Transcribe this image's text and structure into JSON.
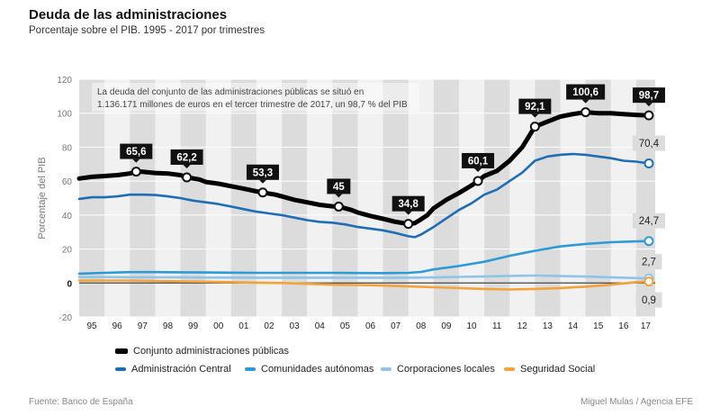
{
  "title": "Deuda de las administraciones",
  "subtitle": "Porcentaje sobre el PIB. 1995 - 2017 por trimestres",
  "source": "Fuente: Banco de España",
  "credit": "Miguel Mulas / Agencia EFE",
  "chart_data": {
    "type": "line",
    "ylabel": "Porcentaje del PIB",
    "ylim": [
      -20,
      120
    ],
    "yticks": [
      "120",
      "100",
      "80",
      "60",
      "40",
      "20",
      "0",
      "-20"
    ],
    "ytick_values": [
      120,
      100,
      80,
      60,
      40,
      20,
      0,
      -20
    ],
    "xticks": [
      "95",
      "96",
      "97",
      "98",
      "99",
      "00",
      "01",
      "02",
      "03",
      "04",
      "05",
      "06",
      "07",
      "08",
      "09",
      "10",
      "11",
      "12",
      "13",
      "14",
      "15",
      "16",
      "17"
    ],
    "x_start": 1995.0,
    "x_end": 2017.75,
    "annotation": "La deuda del conjunto de las administraciones públicas se situó en 1.136.171 millones de euros en el tercer trimestre de 2017, un 98,7 % del PIB",
    "series": [
      {
        "name": "Conjunto administraciones públicas",
        "color": "#000000",
        "points": [
          [
            1995.0,
            61.5
          ],
          [
            1995.5,
            62.5
          ],
          [
            1996.0,
            63.0
          ],
          [
            1996.5,
            63.5
          ],
          [
            1997.0,
            64.5
          ],
          [
            1997.25,
            65.6
          ],
          [
            1997.5,
            65.5
          ],
          [
            1998.0,
            64.8
          ],
          [
            1998.5,
            64.5
          ],
          [
            1999.0,
            63.5
          ],
          [
            1999.25,
            62.2
          ],
          [
            1999.75,
            61.0
          ],
          [
            2000.0,
            59.5
          ],
          [
            2000.5,
            58.5
          ],
          [
            2001.0,
            57.0
          ],
          [
            2001.5,
            55.5
          ],
          [
            2002.0,
            54.0
          ],
          [
            2002.25,
            53.3
          ],
          [
            2002.75,
            52.0
          ],
          [
            2003.0,
            51.0
          ],
          [
            2003.5,
            49.0
          ],
          [
            2004.0,
            47.5
          ],
          [
            2004.5,
            46.0
          ],
          [
            2005.0,
            45.2
          ],
          [
            2005.25,
            45.0
          ],
          [
            2005.75,
            43.0
          ],
          [
            2006.0,
            41.5
          ],
          [
            2006.5,
            39.5
          ],
          [
            2007.0,
            37.8
          ],
          [
            2007.5,
            36.0
          ],
          [
            2008.0,
            34.8
          ],
          [
            2008.25,
            35.2
          ],
          [
            2008.5,
            37.5
          ],
          [
            2008.75,
            40.0
          ],
          [
            2009.0,
            44.0
          ],
          [
            2009.5,
            49.0
          ],
          [
            2010.0,
            53.0
          ],
          [
            2010.5,
            57.5
          ],
          [
            2010.75,
            60.1
          ],
          [
            2011.0,
            63.0
          ],
          [
            2011.5,
            66.0
          ],
          [
            2012.0,
            72.0
          ],
          [
            2012.5,
            80.0
          ],
          [
            2012.75,
            86.0
          ],
          [
            2013.0,
            92.1
          ],
          [
            2013.5,
            95.0
          ],
          [
            2014.0,
            98.0
          ],
          [
            2014.5,
            99.5
          ],
          [
            2015.0,
            100.6
          ],
          [
            2015.5,
            100.0
          ],
          [
            2016.0,
            100.0
          ],
          [
            2016.5,
            99.5
          ],
          [
            2017.0,
            99.0
          ],
          [
            2017.5,
            98.7
          ]
        ]
      },
      {
        "name": "Administración Central",
        "color": "#1f6db5",
        "points": [
          [
            1995.0,
            49.5
          ],
          [
            1995.5,
            50.5
          ],
          [
            1996.0,
            50.5
          ],
          [
            1996.5,
            51.0
          ],
          [
            1997.0,
            52.0
          ],
          [
            1997.5,
            52.0
          ],
          [
            1998.0,
            51.8
          ],
          [
            1998.5,
            51.0
          ],
          [
            1999.0,
            50.0
          ],
          [
            1999.5,
            48.5
          ],
          [
            2000.0,
            47.5
          ],
          [
            2000.5,
            46.5
          ],
          [
            2001.0,
            45.0
          ],
          [
            2001.5,
            43.5
          ],
          [
            2002.0,
            42.0
          ],
          [
            2002.5,
            41.0
          ],
          [
            2003.0,
            40.0
          ],
          [
            2003.5,
            38.5
          ],
          [
            2004.0,
            37.0
          ],
          [
            2004.5,
            36.0
          ],
          [
            2005.0,
            35.5
          ],
          [
            2005.5,
            34.5
          ],
          [
            2006.0,
            33.0
          ],
          [
            2006.5,
            32.0
          ],
          [
            2007.0,
            31.0
          ],
          [
            2007.5,
            29.5
          ],
          [
            2008.0,
            27.5
          ],
          [
            2008.25,
            27.0
          ],
          [
            2008.5,
            28.5
          ],
          [
            2009.0,
            33.0
          ],
          [
            2009.5,
            38.0
          ],
          [
            2010.0,
            43.0
          ],
          [
            2010.5,
            47.0
          ],
          [
            2011.0,
            52.0
          ],
          [
            2011.5,
            55.0
          ],
          [
            2012.0,
            60.0
          ],
          [
            2012.5,
            65.0
          ],
          [
            2013.0,
            72.0
          ],
          [
            2013.5,
            74.5
          ],
          [
            2014.0,
            75.5
          ],
          [
            2014.5,
            76.0
          ],
          [
            2015.0,
            75.5
          ],
          [
            2015.5,
            74.5
          ],
          [
            2016.0,
            73.5
          ],
          [
            2016.5,
            72.0
          ],
          [
            2017.0,
            71.5
          ],
          [
            2017.5,
            70.4
          ]
        ]
      },
      {
        "name": "Comunidades autónomas",
        "color": "#2e9ad6",
        "points": [
          [
            1995.0,
            5.5
          ],
          [
            1996.0,
            6.0
          ],
          [
            1997.0,
            6.4
          ],
          [
            1998.0,
            6.4
          ],
          [
            1999.0,
            6.3
          ],
          [
            2000.0,
            6.2
          ],
          [
            2001.0,
            6.1
          ],
          [
            2002.0,
            6.0
          ],
          [
            2003.0,
            6.0
          ],
          [
            2004.0,
            6.0
          ],
          [
            2005.0,
            6.0
          ],
          [
            2006.0,
            5.9
          ],
          [
            2007.0,
            5.8
          ],
          [
            2008.0,
            6.0
          ],
          [
            2008.5,
            6.5
          ],
          [
            2009.0,
            8.0
          ],
          [
            2010.0,
            10.0
          ],
          [
            2011.0,
            12.5
          ],
          [
            2012.0,
            16.0
          ],
          [
            2012.5,
            17.5
          ],
          [
            2013.0,
            19.0
          ],
          [
            2014.0,
            21.5
          ],
          [
            2015.0,
            23.0
          ],
          [
            2016.0,
            24.0
          ],
          [
            2017.0,
            24.5
          ],
          [
            2017.5,
            24.7
          ]
        ]
      },
      {
        "name": "Corporaciones locales",
        "color": "#8fc4e8",
        "points": [
          [
            1995.0,
            3.5
          ],
          [
            1996.0,
            3.5
          ],
          [
            1997.0,
            3.4
          ],
          [
            1998.0,
            3.4
          ],
          [
            1999.0,
            3.3
          ],
          [
            2000.0,
            3.2
          ],
          [
            2001.0,
            3.2
          ],
          [
            2002.0,
            3.1
          ],
          [
            2003.0,
            3.1
          ],
          [
            2004.0,
            3.1
          ],
          [
            2005.0,
            3.1
          ],
          [
            2006.0,
            3.1
          ],
          [
            2007.0,
            3.1
          ],
          [
            2008.0,
            3.1
          ],
          [
            2009.0,
            3.3
          ],
          [
            2010.0,
            3.6
          ],
          [
            2011.0,
            3.8
          ],
          [
            2012.0,
            4.2
          ],
          [
            2013.0,
            4.4
          ],
          [
            2014.0,
            4.1
          ],
          [
            2015.0,
            3.8
          ],
          [
            2016.0,
            3.3
          ],
          [
            2017.0,
            2.9
          ],
          [
            2017.5,
            2.7
          ]
        ]
      },
      {
        "name": "Seguridad Social",
        "color": "#f2a43a",
        "points": [
          [
            1995.0,
            1.5
          ],
          [
            1996.0,
            1.5
          ],
          [
            1997.0,
            1.5
          ],
          [
            1998.0,
            1.2
          ],
          [
            1999.0,
            1.0
          ],
          [
            2000.0,
            0.8
          ],
          [
            2001.0,
            0.5
          ],
          [
            2002.0,
            0.2
          ],
          [
            2003.0,
            0.0
          ],
          [
            2004.0,
            -0.5
          ],
          [
            2005.0,
            -1.0
          ],
          [
            2006.0,
            -1.2
          ],
          [
            2007.0,
            -1.5
          ],
          [
            2008.0,
            -2.0
          ],
          [
            2009.0,
            -2.5
          ],
          [
            2010.0,
            -3.0
          ],
          [
            2011.0,
            -3.5
          ],
          [
            2012.0,
            -3.8
          ],
          [
            2013.0,
            -3.5
          ],
          [
            2014.0,
            -3.0
          ],
          [
            2015.0,
            -2.2
          ],
          [
            2016.0,
            -1.0
          ],
          [
            2017.0,
            0.5
          ],
          [
            2017.5,
            0.9
          ]
        ]
      }
    ],
    "labels": [
      {
        "text": "65,6",
        "x": 1997.25,
        "y": 65.6,
        "style": "dark",
        "dir": "up"
      },
      {
        "text": "62,2",
        "x": 1999.25,
        "y": 62.2,
        "style": "dark",
        "dir": "up"
      },
      {
        "text": "53,3",
        "x": 2002.25,
        "y": 53.3,
        "style": "dark",
        "dir": "up"
      },
      {
        "text": "45",
        "x": 2005.25,
        "y": 45.0,
        "style": "dark",
        "dir": "up"
      },
      {
        "text": "34,8",
        "x": 2008.0,
        "y": 34.8,
        "style": "dark",
        "dir": "up"
      },
      {
        "text": "60,1",
        "x": 2010.75,
        "y": 60.1,
        "style": "dark",
        "dir": "up"
      },
      {
        "text": "92,1",
        "x": 2013.0,
        "y": 92.1,
        "style": "dark",
        "dir": "up"
      },
      {
        "text": "100,6",
        "x": 2015.0,
        "y": 100.6,
        "style": "dark",
        "dir": "up"
      },
      {
        "text": "98,7",
        "x": 2017.5,
        "y": 98.7,
        "style": "dark",
        "dir": "up"
      },
      {
        "text": "70,4",
        "x": 2017.5,
        "y": 70.4,
        "style": "light",
        "dir": "up"
      },
      {
        "text": "24,7",
        "x": 2017.5,
        "y": 24.7,
        "style": "light",
        "dir": "up"
      },
      {
        "text": "2,7",
        "x": 2017.5,
        "y": 2.7,
        "style": "light",
        "dir": "up"
      },
      {
        "text": "0,9",
        "x": 2017.5,
        "y": 0.9,
        "style": "light",
        "dir": "down"
      }
    ]
  }
}
